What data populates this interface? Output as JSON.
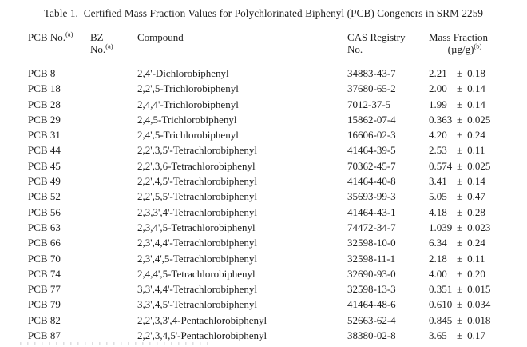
{
  "title": "Table 1.  Certified Mass Fraction Values for Polychlorinated Biphenyl (PCB) Congeners in SRM 2259",
  "columns": {
    "pcb": {
      "label": "PCB No.",
      "sup": "(a)"
    },
    "bz": {
      "line1": "BZ",
      "line2": "No.",
      "sup": "(a)"
    },
    "compound": {
      "label": "Compound"
    },
    "cas": {
      "line1": "CAS Registry",
      "line2": "No."
    },
    "mass_fraction": {
      "line1": "Mass Fraction",
      "line2": "(µg/g)",
      "sup": "(b)"
    }
  },
  "table": {
    "pm": "±",
    "rows": [
      {
        "pcb": "PCB 8",
        "bz": "",
        "compound": "2,4'-Dichlorobiphenyl",
        "cas": "34883-43-7",
        "value": "2.21",
        "unc": "0.18"
      },
      {
        "pcb": "PCB 18",
        "bz": "",
        "compound": "2,2',5-Trichlorobiphenyl",
        "cas": "37680-65-2",
        "value": "2.00",
        "unc": "0.14"
      },
      {
        "pcb": "PCB 28",
        "bz": "",
        "compound": "2,4,4'-Trichlorobiphenyl",
        "cas": "7012-37-5",
        "value": "1.99",
        "unc": "0.14"
      },
      {
        "pcb": "PCB 29",
        "bz": "",
        "compound": "2,4,5-Trichlorobiphenyl",
        "cas": "15862-07-4",
        "value": "0.363",
        "unc": "0.025"
      },
      {
        "pcb": "PCB 31",
        "bz": "",
        "compound": "2,4',5-Trichlorobiphenyl",
        "cas": "16606-02-3",
        "value": "4.20",
        "unc": "0.24"
      },
      {
        "pcb": "PCB 44",
        "bz": "",
        "compound": "2,2',3,5'-Tetrachlorobiphenyl",
        "cas": "41464-39-5",
        "value": "2.53",
        "unc": "0.11"
      },
      {
        "pcb": "PCB 45",
        "bz": "",
        "compound": "2,2',3,6-Tetrachlorobiphenyl",
        "cas": "70362-45-7",
        "value": "0.574",
        "unc": "0.025"
      },
      {
        "pcb": "PCB 49",
        "bz": "",
        "compound": "2,2',4,5'-Tetrachlorobiphenyl",
        "cas": "41464-40-8",
        "value": "3.41",
        "unc": "0.14"
      },
      {
        "pcb": "PCB 52",
        "bz": "",
        "compound": "2,2',5,5'-Tetrachlorobiphenyl",
        "cas": "35693-99-3",
        "value": "5.05",
        "unc": "0.47"
      },
      {
        "pcb": "PCB 56",
        "bz": "",
        "compound": "2,3,3',4'-Tetrachlorobiphenyl",
        "cas": "41464-43-1",
        "value": "4.18",
        "unc": "0.28"
      },
      {
        "pcb": "PCB 63",
        "bz": "",
        "compound": "2,3,4',5-Tetrachlorobiphenyl",
        "cas": "74472-34-7",
        "value": "1.039",
        "unc": "0.023"
      },
      {
        "pcb": "PCB 66",
        "bz": "",
        "compound": "2,3',4,4'-Tetrachlorobiphenyl",
        "cas": "32598-10-0",
        "value": "6.34",
        "unc": "0.24"
      },
      {
        "pcb": "PCB 70",
        "bz": "",
        "compound": "2,3',4',5-Tetrachlorobiphenyl",
        "cas": "32598-11-1",
        "value": "2.18",
        "unc": "0.11"
      },
      {
        "pcb": "PCB 74",
        "bz": "",
        "compound": "2,4,4',5-Tetrachlorobiphenyl",
        "cas": "32690-93-0",
        "value": "4.00",
        "unc": "0.20"
      },
      {
        "pcb": "PCB 77",
        "bz": "",
        "compound": "3,3',4,4'-Tetrachlorobiphenyl",
        "cas": "32598-13-3",
        "value": "0.351",
        "unc": "0.015"
      },
      {
        "pcb": "PCB 79",
        "bz": "",
        "compound": "3,3',4,5'-Tetrachlorobiphenyl",
        "cas": "41464-48-6",
        "value": "0.610",
        "unc": "0.034"
      },
      {
        "pcb": "PCB 82",
        "bz": "",
        "compound": "2,2',3,3',4-Pentachlorobiphenyl",
        "cas": "52663-62-4",
        "value": "0.845",
        "unc": "0.018"
      },
      {
        "pcb": "PCB 87",
        "bz": "",
        "compound": "2,2',3,4,5'-Pentachlorobiphenyl",
        "cas": "38380-02-8",
        "value": "3.65",
        "unc": "0.17"
      }
    ]
  }
}
